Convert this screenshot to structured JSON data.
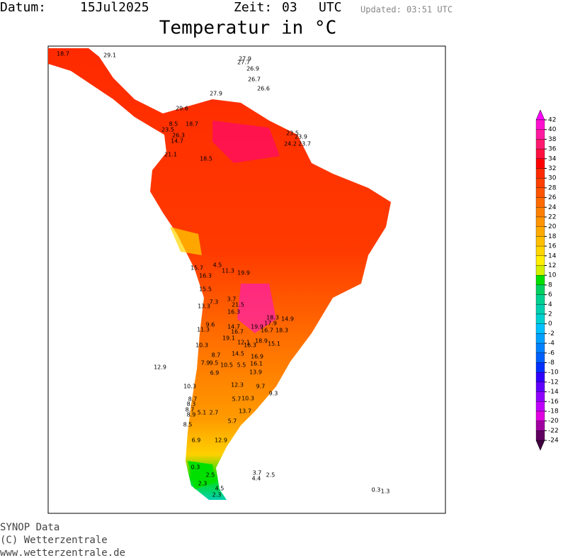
{
  "header": {
    "datum_label": "Datum:",
    "datum": "15Jul2025",
    "zeit_label": "Zeit:",
    "zeit": "03",
    "zone": "UTC",
    "updated": "Updated: 03:51 UTC",
    "title": "Temperatur in °C"
  },
  "footer": [
    "SYNOP Data",
    "(C) Wetterzentrale",
    "www.wetterzentrale.de"
  ],
  "legend": {
    "ticks": [
      42,
      40,
      38,
      36,
      34,
      32,
      30,
      28,
      26,
      24,
      22,
      20,
      18,
      16,
      14,
      12,
      10,
      8,
      6,
      4,
      2,
      0,
      -2,
      -4,
      -6,
      -8,
      -10,
      -12,
      -14,
      -16,
      -18,
      -20,
      -22,
      -24
    ],
    "colors": [
      "#ff10d0",
      "#ff1aa0",
      "#ff1a70",
      "#ff1040",
      "#ff0000",
      "#ff2a00",
      "#ff4000",
      "#ff5500",
      "#ff6a00",
      "#ff8000",
      "#ff9500",
      "#ffaa00",
      "#ffbf00",
      "#ffd500",
      "#ffee00",
      "#d4f000",
      "#00e000",
      "#00d060",
      "#00d090",
      "#00d0b0",
      "#00d0d0",
      "#00c0ff",
      "#00a0ff",
      "#0080ff",
      "#0060ff",
      "#0030ff",
      "#3000ff",
      "#6000ff",
      "#9000ff",
      "#c000ff",
      "#e000e0",
      "#a000a0",
      "#600060"
    ],
    "over_color": "#ff00ff",
    "under_color": "#400040"
  },
  "stations": [
    18.7,
    29.1,
    27.9,
    27.7,
    26.9,
    26.7,
    26.6,
    27.9,
    29.6,
    18.7,
    8.5,
    23.5,
    26.3,
    14.7,
    23.5,
    23.9,
    24.2,
    23.7,
    21.1,
    18.5,
    15.7,
    4.5,
    16.3,
    11.3,
    19.9,
    15.5,
    3.7,
    7.3,
    13.3,
    21.5,
    16.3,
    18.3,
    14.9,
    17.9,
    9.6,
    11.3,
    14.7,
    19.9,
    16.7,
    18.3,
    16.7,
    19.1,
    12.1,
    10.3,
    16.3,
    18.9,
    15.1,
    8.7,
    14.5,
    16.9,
    7.9,
    9.5,
    10.5,
    5.5,
    16.1,
    12.9,
    13.9,
    12.3,
    10.3,
    6.9,
    8.7,
    9.7,
    9.3,
    10.3,
    5.7,
    8.3,
    8.7,
    5.1,
    2.7,
    8.9,
    13.7,
    8.5,
    5.7,
    12.9,
    6.9,
    0.3,
    2.5,
    3.7,
    2.5,
    4.4,
    2.3,
    4.5,
    2.3,
    0.3,
    1.3
  ]
}
